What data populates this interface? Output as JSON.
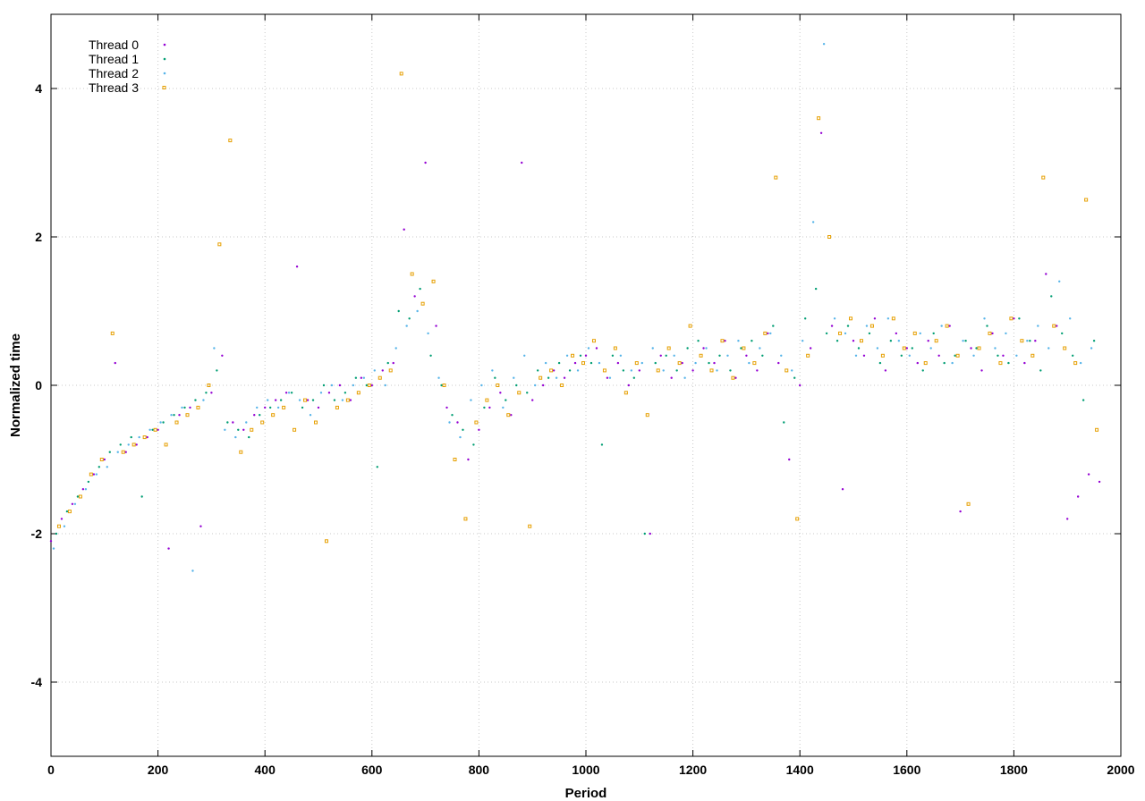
{
  "chart_data": {
    "type": "scatter",
    "title": "",
    "xlabel": "Period",
    "ylabel": "Normalized time",
    "xlim": [
      0,
      2000
    ],
    "ylim": [
      -5,
      5
    ],
    "xticks": [
      0,
      200,
      400,
      600,
      800,
      1000,
      1200,
      1400,
      1600,
      1800,
      2000
    ],
    "yticks": [
      -4,
      -2,
      0,
      2,
      4
    ],
    "grid": true,
    "legend_position": "top-left",
    "series": [
      {
        "name": "Thread 0",
        "color": "#9400d3",
        "marker": "dot",
        "x": [
          0,
          20,
          40,
          60,
          80,
          100,
          120,
          140,
          160,
          180,
          200,
          220,
          240,
          260,
          280,
          300,
          320,
          340,
          360,
          380,
          400,
          420,
          440,
          460,
          480,
          500,
          520,
          540,
          560,
          580,
          600,
          620,
          640,
          660,
          680,
          700,
          720,
          740,
          760,
          780,
          800,
          820,
          840,
          860,
          880,
          900,
          920,
          940,
          960,
          980,
          1000,
          1020,
          1040,
          1060,
          1080,
          1100,
          1120,
          1140,
          1160,
          1180,
          1200,
          1220,
          1240,
          1260,
          1280,
          1300,
          1320,
          1340,
          1360,
          1380,
          1400,
          1420,
          1440,
          1460,
          1480,
          1500,
          1520,
          1540,
          1560,
          1580,
          1600,
          1620,
          1640,
          1660,
          1680,
          1700,
          1720,
          1740,
          1760,
          1780,
          1800,
          1820,
          1840,
          1860,
          1880,
          1900,
          1920,
          1940,
          1960
        ],
        "y": [
          -2.1,
          -1.8,
          -1.6,
          -1.4,
          -1.2,
          -1.0,
          0.3,
          -0.9,
          -0.8,
          -0.7,
          -0.6,
          -2.2,
          -0.4,
          -0.3,
          -1.9,
          -0.1,
          0.4,
          -0.5,
          -0.6,
          -0.4,
          -0.3,
          -0.2,
          -0.1,
          1.6,
          -0.2,
          -0.3,
          -0.1,
          0.0,
          -0.2,
          0.1,
          0.0,
          0.2,
          0.3,
          2.1,
          1.2,
          3.0,
          0.8,
          -0.3,
          -0.5,
          -1.0,
          -0.6,
          -0.3,
          -0.1,
          -0.4,
          3.0,
          -0.2,
          0.0,
          0.2,
          0.1,
          0.3,
          0.4,
          0.5,
          0.1,
          0.3,
          0.0,
          0.2,
          -2.0,
          0.4,
          0.1,
          0.3,
          0.2,
          0.5,
          0.3,
          0.6,
          0.1,
          0.4,
          0.2,
          0.7,
          0.3,
          -1.0,
          0.0,
          0.5,
          3.4,
          0.8,
          -1.4,
          0.6,
          0.4,
          0.9,
          0.2,
          0.7,
          0.5,
          0.3,
          0.6,
          0.4,
          0.8,
          -1.7,
          0.5,
          0.2,
          0.7,
          0.4,
          0.9,
          0.3,
          0.6,
          1.5,
          0.8,
          -1.8,
          -1.5,
          -1.2,
          -1.3
        ]
      },
      {
        "name": "Thread 1",
        "color": "#009e73",
        "marker": "dot",
        "x": [
          10,
          30,
          50,
          70,
          90,
          110,
          130,
          150,
          170,
          190,
          210,
          230,
          250,
          270,
          290,
          310,
          330,
          350,
          370,
          390,
          410,
          430,
          450,
          470,
          490,
          510,
          530,
          550,
          570,
          590,
          610,
          630,
          650,
          670,
          690,
          710,
          730,
          750,
          770,
          790,
          810,
          830,
          850,
          870,
          890,
          910,
          930,
          950,
          970,
          990,
          1010,
          1030,
          1050,
          1070,
          1090,
          1110,
          1130,
          1150,
          1170,
          1190,
          1210,
          1230,
          1250,
          1270,
          1290,
          1310,
          1330,
          1350,
          1370,
          1390,
          1410,
          1430,
          1450,
          1470,
          1490,
          1510,
          1530,
          1550,
          1570,
          1590,
          1610,
          1630,
          1650,
          1670,
          1690,
          1710,
          1730,
          1750,
          1770,
          1790,
          1810,
          1830,
          1850,
          1870,
          1890,
          1910,
          1930,
          1950
        ],
        "y": [
          -2.0,
          -1.7,
          -1.5,
          -1.3,
          -1.1,
          -0.9,
          -0.8,
          -0.7,
          -1.5,
          -0.6,
          -0.5,
          -0.4,
          -0.3,
          -0.2,
          -0.1,
          0.2,
          -0.5,
          -0.6,
          -0.7,
          -0.4,
          -0.3,
          -0.2,
          -0.1,
          -0.3,
          -0.2,
          0.0,
          -0.2,
          -0.1,
          0.1,
          0.0,
          -1.1,
          0.3,
          1.0,
          0.9,
          1.3,
          0.4,
          0.0,
          -0.4,
          -0.6,
          -0.8,
          -0.3,
          0.1,
          -0.2,
          0.0,
          -0.1,
          0.2,
          0.1,
          0.3,
          0.2,
          0.4,
          0.3,
          -0.8,
          0.4,
          0.2,
          0.1,
          -2.0,
          0.3,
          0.4,
          0.2,
          0.5,
          0.6,
          0.3,
          0.4,
          0.2,
          0.5,
          0.6,
          0.4,
          0.8,
          -0.5,
          0.1,
          0.9,
          1.3,
          0.7,
          0.6,
          0.8,
          0.5,
          0.7,
          0.3,
          0.6,
          0.4,
          0.5,
          0.2,
          0.7,
          0.3,
          0.4,
          0.6,
          0.5,
          0.8,
          0.4,
          0.3,
          0.9,
          0.6,
          0.2,
          1.2,
          0.7,
          0.4,
          -0.2,
          0.6
        ]
      },
      {
        "name": "Thread 2",
        "color": "#56b4e9",
        "marker": "dot",
        "x": [
          5,
          25,
          45,
          65,
          85,
          105,
          125,
          145,
          165,
          185,
          205,
          225,
          245,
          265,
          285,
          305,
          325,
          345,
          365,
          385,
          405,
          425,
          445,
          465,
          485,
          505,
          525,
          545,
          565,
          585,
          605,
          625,
          645,
          665,
          685,
          705,
          725,
          745,
          765,
          785,
          805,
          825,
          845,
          865,
          885,
          905,
          925,
          945,
          965,
          985,
          1005,
          1025,
          1045,
          1065,
          1085,
          1105,
          1125,
          1145,
          1165,
          1185,
          1205,
          1225,
          1245,
          1265,
          1285,
          1305,
          1325,
          1345,
          1365,
          1385,
          1405,
          1425,
          1445,
          1465,
          1485,
          1505,
          1525,
          1545,
          1565,
          1585,
          1605,
          1625,
          1645,
          1665,
          1685,
          1705,
          1725,
          1745,
          1765,
          1785,
          1805,
          1825,
          1845,
          1865,
          1885,
          1905,
          1925,
          1945
        ],
        "y": [
          -2.2,
          -1.9,
          -1.6,
          -1.4,
          -1.2,
          -1.1,
          -0.9,
          -0.8,
          -0.7,
          -0.6,
          -0.5,
          -0.4,
          -0.3,
          -2.5,
          -0.2,
          0.5,
          -0.6,
          -0.7,
          -0.5,
          -0.3,
          -0.2,
          -0.3,
          -0.1,
          -0.2,
          -0.4,
          -0.1,
          0.0,
          -0.2,
          0.0,
          0.1,
          0.2,
          0.0,
          0.5,
          0.8,
          1.0,
          0.7,
          0.1,
          -0.5,
          -0.7,
          -0.2,
          0.0,
          0.2,
          -0.3,
          0.1,
          0.4,
          0.0,
          0.3,
          0.1,
          0.4,
          0.2,
          0.5,
          0.3,
          0.1,
          0.4,
          0.2,
          0.3,
          0.5,
          0.2,
          0.4,
          0.1,
          0.3,
          0.5,
          0.2,
          0.4,
          0.6,
          0.3,
          0.5,
          0.7,
          0.4,
          0.2,
          0.6,
          2.2,
          4.6,
          0.9,
          0.7,
          0.4,
          0.8,
          0.5,
          0.9,
          0.6,
          0.4,
          0.7,
          0.5,
          0.8,
          0.3,
          0.6,
          0.4,
          0.9,
          0.5,
          0.7,
          0.4,
          0.6,
          0.8,
          0.5,
          1.4,
          0.9,
          0.3,
          0.5
        ]
      },
      {
        "name": "Thread 3",
        "color": "#e69f00",
        "marker": "square",
        "x": [
          15,
          35,
          55,
          75,
          95,
          115,
          135,
          155,
          175,
          195,
          215,
          235,
          255,
          275,
          295,
          315,
          335,
          355,
          375,
          395,
          415,
          435,
          455,
          475,
          495,
          515,
          535,
          555,
          575,
          595,
          615,
          635,
          655,
          675,
          695,
          715,
          735,
          755,
          775,
          795,
          815,
          835,
          855,
          875,
          895,
          915,
          935,
          955,
          975,
          995,
          1015,
          1035,
          1055,
          1075,
          1095,
          1115,
          1135,
          1155,
          1175,
          1195,
          1215,
          1235,
          1255,
          1275,
          1295,
          1315,
          1335,
          1355,
          1375,
          1395,
          1415,
          1435,
          1455,
          1475,
          1495,
          1515,
          1535,
          1555,
          1575,
          1595,
          1615,
          1635,
          1655,
          1675,
          1695,
          1715,
          1735,
          1755,
          1775,
          1795,
          1815,
          1835,
          1855,
          1875,
          1895,
          1915,
          1935,
          1955
        ],
        "y": [
          -1.9,
          -1.7,
          -1.5,
          -1.2,
          -1.0,
          0.7,
          -0.9,
          -0.8,
          -0.7,
          -0.6,
          -0.8,
          -0.5,
          -0.4,
          -0.3,
          0.0,
          1.9,
          3.3,
          -0.9,
          -0.6,
          -0.5,
          -0.4,
          -0.3,
          -0.6,
          -0.2,
          -0.5,
          -2.1,
          -0.3,
          -0.2,
          -0.1,
          0.0,
          0.1,
          0.2,
          4.2,
          1.5,
          1.1,
          1.4,
          0.0,
          -1.0,
          -1.8,
          -0.5,
          -0.2,
          0.0,
          -0.4,
          -0.1,
          -1.9,
          0.1,
          0.2,
          0.0,
          0.4,
          0.3,
          0.6,
          0.2,
          0.5,
          -0.1,
          0.3,
          -0.4,
          0.2,
          0.5,
          0.3,
          0.8,
          0.4,
          0.2,
          0.6,
          0.1,
          0.5,
          0.3,
          0.7,
          2.8,
          0.2,
          -1.8,
          0.4,
          3.6,
          2.0,
          0.7,
          0.9,
          0.6,
          0.8,
          0.4,
          0.9,
          0.5,
          0.7,
          0.3,
          0.6,
          0.8,
          0.4,
          -1.6,
          0.5,
          0.7,
          0.3,
          0.9,
          0.6,
          0.4,
          2.8,
          0.8,
          0.5,
          0.3,
          2.5,
          -0.6
        ]
      }
    ]
  }
}
